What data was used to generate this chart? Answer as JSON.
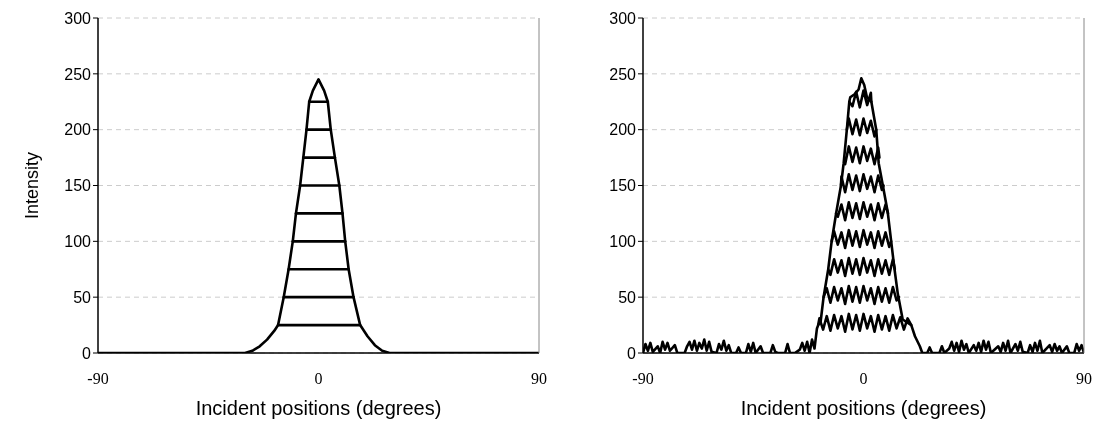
{
  "chart_data": [
    {
      "type": "line",
      "xlabel": "Incident positions (degrees)",
      "ylabel": "Intensity",
      "xlim": [
        -90,
        90
      ],
      "xticks": [
        -90,
        0,
        90
      ],
      "ylim": [
        0,
        300
      ],
      "yticks": [
        0,
        50,
        100,
        150,
        200,
        250,
        300
      ],
      "grid": "y",
      "series": [
        {
          "color": "#000000",
          "x": [
            -90,
            -30,
            -27,
            -24,
            -21,
            -18,
            -16.5,
            -14.2,
            -12.2,
            -10.5,
            -9.2,
            -7.5,
            -6.2,
            -4.9,
            -3.8,
            -2.3,
            0,
            2.3,
            3.8,
            5,
            6.7,
            8.5,
            9.8,
            10.9,
            12.3,
            14.3,
            17,
            20,
            23,
            26,
            29,
            90
          ],
          "values": [
            0,
            0,
            2,
            6,
            12,
            20,
            25,
            50,
            75,
            100,
            125,
            150,
            175,
            200,
            225,
            235,
            245,
            235,
            225,
            200,
            175,
            150,
            125,
            100,
            75,
            50,
            25,
            15,
            7,
            2,
            0,
            0
          ]
        },
        {
          "color": "#000000",
          "x": [
            -16.5,
            17
          ],
          "values": [
            25,
            25
          ]
        },
        {
          "color": "#000000",
          "x": [
            -14.2,
            14.3
          ],
          "values": [
            50,
            50
          ]
        },
        {
          "color": "#000000",
          "x": [
            -12.2,
            12.3
          ],
          "values": [
            75,
            75
          ]
        },
        {
          "color": "#000000",
          "x": [
            -10.5,
            10.9
          ],
          "values": [
            100,
            100
          ]
        },
        {
          "color": "#000000",
          "x": [
            -9.2,
            9.8
          ],
          "values": [
            125,
            125
          ]
        },
        {
          "color": "#000000",
          "x": [
            -7.5,
            8.5
          ],
          "values": [
            150,
            150
          ]
        },
        {
          "color": "#000000",
          "x": [
            -6.2,
            6.7
          ],
          "values": [
            175,
            175
          ]
        },
        {
          "color": "#000000",
          "x": [
            -4.9,
            5
          ],
          "values": [
            200,
            200
          ]
        },
        {
          "color": "#000000",
          "x": [
            -3.8,
            3.8
          ],
          "values": [
            225,
            225
          ]
        }
      ]
    },
    {
      "type": "line",
      "xlabel": "Incident positions (degrees)",
      "xlim": [
        -90,
        90
      ],
      "xticks": [
        -90,
        0,
        90
      ],
      "ylim": [
        0,
        300
      ],
      "yticks": [
        0,
        50,
        100,
        150,
        200,
        250,
        300
      ],
      "grid": "y",
      "series": [
        {
          "color": "#000000",
          "x": [
            -90,
            -89,
            -88,
            -87,
            -86,
            -84,
            -83,
            -82,
            -81,
            -80,
            -79,
            -77,
            -76,
            -73,
            -72,
            -71,
            -70,
            -69,
            -68,
            -67,
            -66,
            -65,
            -64,
            -63,
            -62,
            -60,
            -59,
            -58,
            -57,
            -56,
            -55,
            -54,
            -52,
            -51,
            -50,
            -48,
            -47,
            -46,
            -45,
            -44,
            -42,
            -41,
            -38,
            -37,
            -36,
            -35,
            -32,
            -31,
            -30,
            -28,
            -26,
            -25,
            -24,
            -23,
            -22,
            -21,
            -20,
            -19,
            -18.5,
            -17.5,
            -16.3,
            -14.4,
            -13,
            -11.1,
            -9.2,
            -8.1,
            -6.8,
            -5.8,
            -5.4,
            -3.5,
            -2,
            -0.9,
            0.3,
            1.4,
            3.2,
            5.2,
            6.2,
            7.9,
            9.9,
            11.3,
            12.6,
            14,
            16,
            19.5,
            21,
            23,
            24,
            26,
            27,
            28,
            31,
            32,
            33,
            35,
            36,
            37,
            38,
            39,
            40,
            41,
            42,
            43,
            45,
            46,
            47,
            48,
            49,
            50,
            51,
            52,
            55,
            56,
            57,
            58,
            59,
            60,
            62,
            63,
            64,
            65,
            67,
            68,
            69,
            70,
            71,
            72,
            73,
            76,
            77,
            78,
            79,
            80,
            81,
            83,
            84,
            86,
            87,
            88,
            89,
            90
          ],
          "values": [
            0,
            8,
            2,
            9,
            1,
            6,
            0,
            10,
            3,
            9,
            2,
            7,
            0,
            0,
            6,
            10,
            3,
            11,
            2,
            9,
            4,
            12,
            2,
            10,
            1,
            0,
            8,
            3,
            11,
            2,
            7,
            0,
            0,
            5,
            0,
            0,
            8,
            1,
            9,
            0,
            6,
            0,
            0,
            7,
            1,
            0,
            0,
            8,
            0,
            0,
            3,
            9,
            2,
            10,
            0,
            12,
            4,
            22,
            25,
            28,
            50,
            75,
            100,
            126,
            150,
            170,
            200,
            225,
            229,
            232,
            236,
            246,
            240,
            229,
            225,
            200,
            170,
            150,
            126,
            100,
            76,
            53,
            30,
            25,
            15,
            6,
            0,
            0,
            5,
            0,
            0,
            6,
            0,
            4,
            10,
            2,
            9,
            1,
            11,
            3,
            8,
            0,
            7,
            2,
            9,
            1,
            11,
            3,
            10,
            0,
            6,
            1,
            9,
            2,
            11,
            0,
            8,
            2,
            10,
            1,
            0,
            7,
            1,
            9,
            2,
            11,
            0,
            7,
            1,
            8,
            2,
            6,
            0,
            6,
            0,
            0,
            8,
            2,
            7,
            0
          ]
        },
        {
          "color": "#000000",
          "x": [
            -18.5,
            -18,
            -16.5,
            -15,
            -13.5,
            -12,
            -10.5,
            -9,
            -7.5,
            -6,
            -4.5,
            -3,
            -1.5,
            0,
            1.5,
            3,
            4.5,
            6,
            7.5,
            9,
            10.5,
            12,
            13.5,
            15,
            16.5,
            18,
            19.5
          ],
          "values": [
            25,
            31,
            21,
            33,
            20,
            34,
            22,
            33,
            19,
            35,
            21,
            34,
            20,
            35,
            22,
            33,
            19,
            34,
            21,
            33,
            20,
            34,
            22,
            32,
            21,
            31,
            25
          ]
        },
        {
          "color": "#000000",
          "x": [
            -16.3,
            -15,
            -13.5,
            -12,
            -10.5,
            -9,
            -7.5,
            -6,
            -4.5,
            -3,
            -1.5,
            0,
            1.5,
            3,
            4.5,
            6,
            7.5,
            9,
            10.5,
            12,
            13.5,
            14.5
          ],
          "values": [
            50,
            58,
            45,
            59,
            47,
            58,
            44,
            60,
            46,
            59,
            45,
            60,
            47,
            58,
            44,
            59,
            46,
            58,
            45,
            59,
            47,
            50
          ]
        },
        {
          "color": "#000000",
          "x": [
            -14.4,
            -13.5,
            -12,
            -10.5,
            -9,
            -7.5,
            -6,
            -4.5,
            -3,
            -1.5,
            0,
            1.5,
            3,
            4.5,
            6,
            7.5,
            9,
            10.5,
            12,
            12.8
          ],
          "values": [
            75,
            70,
            84,
            72,
            83,
            69,
            85,
            71,
            84,
            70,
            85,
            72,
            83,
            69,
            84,
            71,
            83,
            70,
            84,
            75
          ]
        },
        {
          "color": "#000000",
          "x": [
            -13,
            -12,
            -10.5,
            -9,
            -7.5,
            -6,
            -4.5,
            -3,
            -1.5,
            0,
            1.5,
            3,
            4.5,
            6,
            7.5,
            9,
            10.5,
            11.3
          ],
          "values": [
            100,
            109,
            97,
            108,
            94,
            110,
            96,
            109,
            95,
            110,
            97,
            108,
            94,
            109,
            96,
            108,
            95,
            100
          ]
        },
        {
          "color": "#000000",
          "x": [
            -11.2,
            -10.5,
            -9,
            -7.5,
            -6,
            -4.5,
            -3,
            -1.5,
            0,
            1.5,
            3,
            4.5,
            6,
            7.5,
            9,
            10
          ],
          "values": [
            125,
            122,
            133,
            119,
            135,
            121,
            134,
            120,
            135,
            122,
            133,
            119,
            134,
            121,
            133,
            125
          ]
        },
        {
          "color": "#000000",
          "x": [
            -9.2,
            -9,
            -7.5,
            -6,
            -4.5,
            -3,
            -1.5,
            0,
            1.5,
            3,
            4.5,
            6,
            7.5,
            8.2
          ],
          "values": [
            150,
            158,
            144,
            160,
            146,
            159,
            145,
            160,
            147,
            158,
            144,
            159,
            146,
            150
          ]
        },
        {
          "color": "#000000",
          "x": [
            -7.8,
            -7.5,
            -6,
            -4.5,
            -3,
            -1.5,
            0,
            1.5,
            3,
            4.5,
            6,
            6.5
          ],
          "values": [
            175,
            169,
            185,
            171,
            184,
            170,
            185,
            172,
            183,
            169,
            184,
            175
          ]
        },
        {
          "color": "#000000",
          "x": [
            -6.8,
            -6,
            -4.5,
            -3,
            -1.5,
            0,
            1.5,
            3,
            4.5,
            5.2
          ],
          "values": [
            200,
            210,
            196,
            209,
            195,
            210,
            197,
            208,
            194,
            200
          ]
        },
        {
          "color": "#000000",
          "x": [
            -5.8,
            -4.5,
            -3,
            -1.5,
            0,
            1.5,
            3,
            3.2
          ],
          "values": [
            225,
            221,
            234,
            220,
            235,
            222,
            233,
            225
          ]
        }
      ]
    }
  ]
}
